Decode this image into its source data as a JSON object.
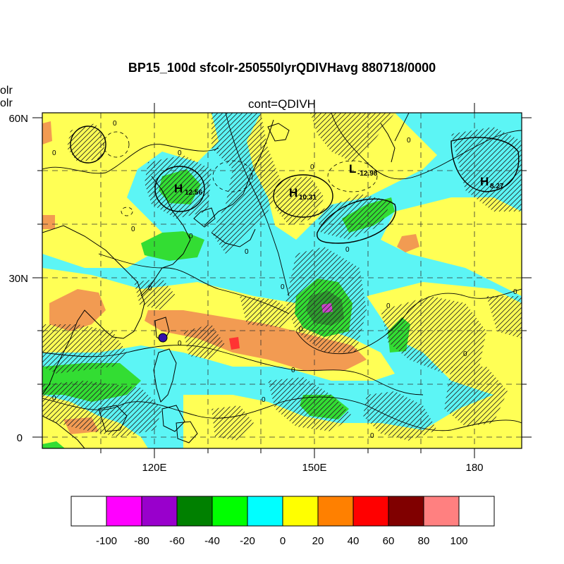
{
  "title": "BP15_100d sfcolr-250550lyrQDIVHavg  880718/0000",
  "subtitle": "cont=QDIVH",
  "left_cut": [
    "olr",
    "olr"
  ],
  "axes": {
    "lat_ticks": [
      {
        "label": "60N",
        "value": 60
      },
      {
        "label": "30N",
        "value": 30
      },
      {
        "label": "0",
        "value": 0
      }
    ],
    "lon_ticks": [
      {
        "label": "120E",
        "value": 120
      },
      {
        "label": "150E",
        "value": 150
      },
      {
        "label": "180",
        "value": 180
      }
    ],
    "lon_range": [
      99,
      189
    ],
    "lat_range": [
      -2,
      61
    ]
  },
  "colors": {
    "c_m100": "#ffffff",
    "c_m80": "#ff00ff",
    "c_m60": "#9900cc",
    "c_m40": "#008000",
    "c_m20": "#00ff00",
    "c_0": "#00ffff",
    "c_20": "#ffff00",
    "c_40": "#ff8000",
    "c_60": "#ff0000",
    "c_80": "#800000",
    "c_100": "#ff8080",
    "c_gt100": "#ffffff",
    "pale_cyan": "#5cf5f5",
    "pale_yellow": "#ffff55",
    "pale_green": "#33dd33",
    "dark_green": "#2e9e2e",
    "orange": "#f29b52",
    "red": "#ff3333",
    "magenta": "#cc44cc"
  },
  "colorbar": {
    "labels": [
      "-100",
      "-80",
      "-60",
      "-40",
      "-20",
      "0",
      "20",
      "40",
      "60",
      "80",
      "100"
    ],
    "swatches": [
      "#ffffff",
      "#ff00ff",
      "#9900cc",
      "#008000",
      "#00ff00",
      "#00ffff",
      "#ffff00",
      "#ff8000",
      "#ff0000",
      "#800000",
      "#ff8080",
      "#ffffff"
    ]
  },
  "highs_lows": [
    {
      "letter": "H",
      "value": "12.56"
    },
    {
      "letter": "H",
      "value": "10.31"
    },
    {
      "letter": "L",
      "value": "-12.98"
    },
    {
      "letter": "H",
      "value": "8.27"
    }
  ],
  "contour_zero_label": "0",
  "marker": {
    "name": "station-marker",
    "color": "#3311aa"
  }
}
